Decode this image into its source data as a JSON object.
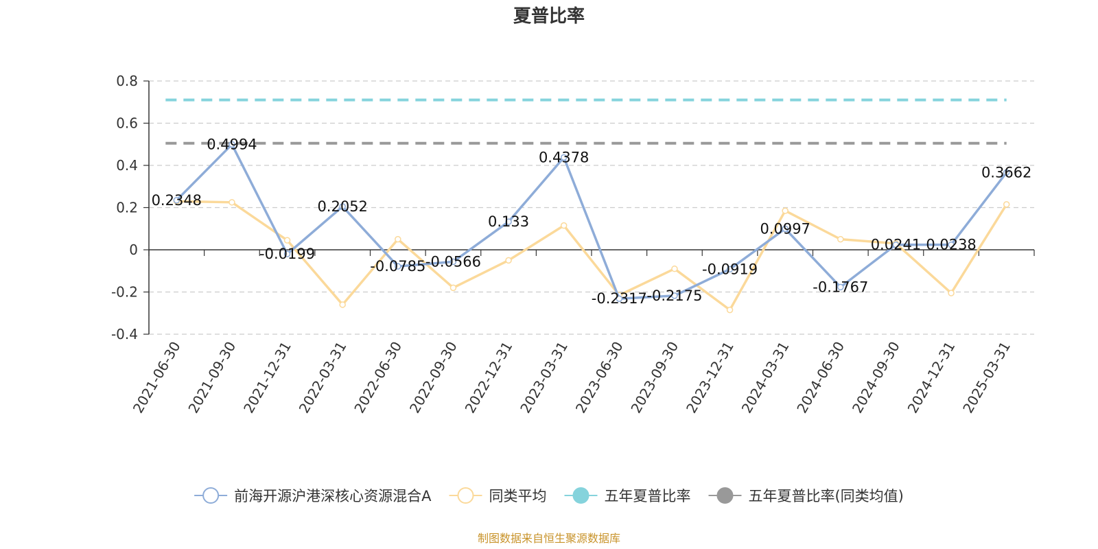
{
  "chart_data": {
    "type": "line",
    "title": "夏普比率",
    "categories": [
      "2021-06-30",
      "2021-09-30",
      "2021-12-31",
      "2022-03-31",
      "2022-06-30",
      "2022-09-30",
      "2022-12-31",
      "2023-03-31",
      "2023-06-30",
      "2023-09-30",
      "2023-12-31",
      "2024-03-31",
      "2024-06-30",
      "2024-09-30",
      "2024-12-31",
      "2025-03-31"
    ],
    "ylim": [
      -0.4,
      0.8
    ],
    "yticks": [
      "0.8",
      "0.6",
      "0.4",
      "0.2",
      "0",
      "-0.2",
      "-0.4"
    ],
    "grid": true,
    "legend_position": "bottom",
    "series": [
      {
        "name": "前海开源沪港深核心资源混合A",
        "color": "#8eacd8",
        "values": [
          0.2348,
          0.4994,
          -0.0199,
          0.2052,
          -0.0785,
          -0.0566,
          0.133,
          0.4378,
          -0.2317,
          -0.2175,
          -0.0919,
          0.0997,
          -0.1767,
          0.0241,
          0.0238,
          0.3662
        ],
        "labels": [
          "0.2348",
          "0.4994",
          "-0.0199",
          "0.2052",
          "-0.0785",
          "-0.0566",
          "0.133",
          "0.4378",
          "-0.2317",
          "-0.2175",
          "-0.0919",
          "0.0997",
          "-0.1767",
          "0.0241",
          "0.0238",
          "0.3662"
        ]
      },
      {
        "name": "同类平均",
        "color": "#fbd99a",
        "values": [
          0.23,
          0.225,
          0.045,
          -0.26,
          0.05,
          -0.18,
          -0.05,
          0.115,
          -0.215,
          -0.09,
          -0.285,
          0.185,
          0.05,
          0.03,
          -0.205,
          0.215
        ]
      },
      {
        "name": "五年夏普比率",
        "color": "#85d3dc",
        "style": "dashed",
        "value": 0.71
      },
      {
        "name": "五年夏普比率(同类均值)",
        "color": "#999999",
        "style": "dashed",
        "value": 0.505
      }
    ],
    "source": "制图数据来自恒生聚源数据库"
  }
}
